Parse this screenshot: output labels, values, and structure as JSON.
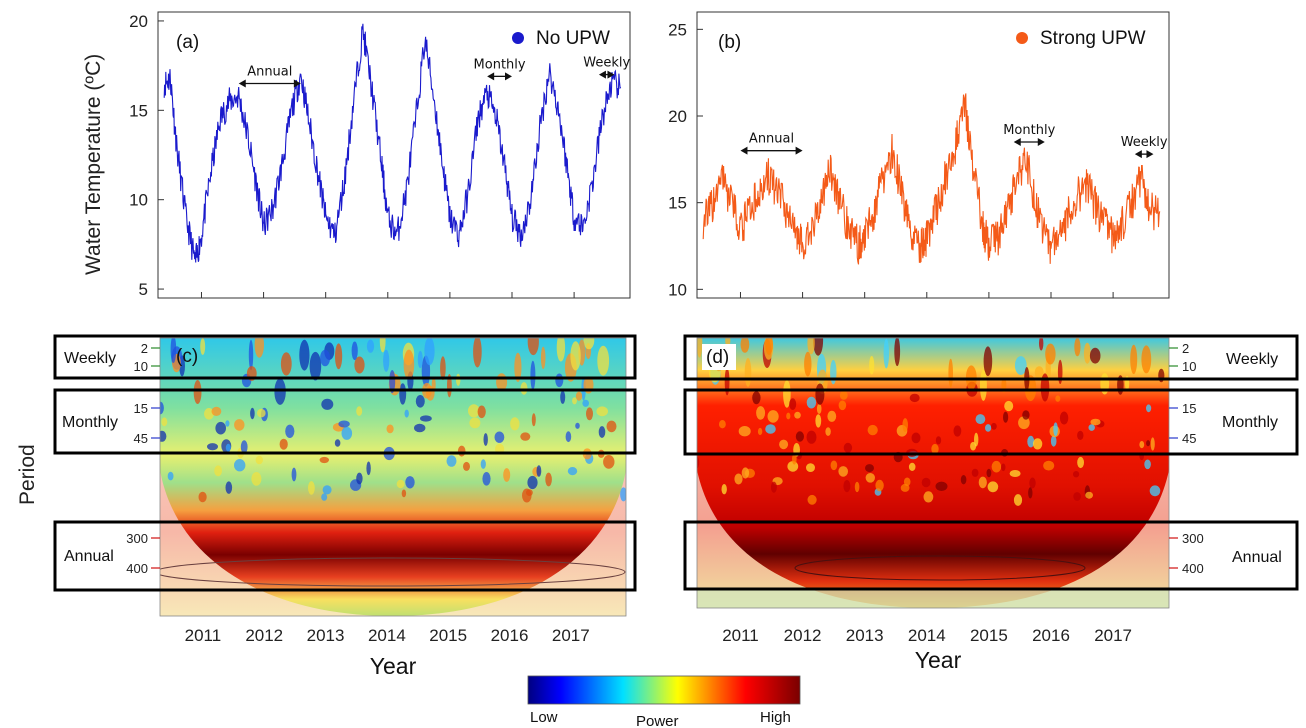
{
  "chart_data": [
    {
      "panel": "(a)",
      "type": "line",
      "ylabel": "Water Temperature (ºC)",
      "ylim": [
        5,
        20
      ],
      "yticks": [
        "5",
        "10",
        "15",
        "20"
      ],
      "legend": "No UPW",
      "legend_position": "top-right",
      "color": "#1a1acc",
      "xlim": [
        2010.3,
        2017.9
      ],
      "annotations": [
        {
          "label": "Annual",
          "x": [
            2011.6,
            2012.6
          ],
          "y": 16.5
        },
        {
          "label": "Monthly",
          "x": [
            2015.6,
            2016.0
          ],
          "y": 16.9
        },
        {
          "label": "Weekly",
          "x": [
            2017.4,
            2017.65
          ],
          "y": 17.0
        }
      ],
      "series": [
        {
          "name": "No UPW",
          "x": [
            2010.4,
            2010.5,
            2010.6,
            2010.75,
            2010.9,
            2011.0,
            2011.15,
            2011.3,
            2011.45,
            2011.6,
            2011.75,
            2011.9,
            2012.0,
            2012.15,
            2012.3,
            2012.45,
            2012.6,
            2012.75,
            2012.9,
            2013.0,
            2013.15,
            2013.3,
            2013.45,
            2013.6,
            2013.75,
            2013.9,
            2014.0,
            2014.15,
            2014.3,
            2014.45,
            2014.6,
            2014.75,
            2014.9,
            2015.0,
            2015.15,
            2015.3,
            2015.45,
            2015.6,
            2015.75,
            2015.9,
            2016.0,
            2016.15,
            2016.3,
            2016.45,
            2016.6,
            2016.75,
            2016.9,
            2017.0,
            2017.15,
            2017.3,
            2017.45,
            2017.6,
            2017.75
          ],
          "y": [
            16.5,
            16.8,
            13.0,
            9.0,
            6.5,
            8.0,
            11.5,
            14.5,
            15.5,
            15.8,
            13.5,
            10.5,
            8.5,
            9.5,
            12.0,
            15.0,
            17.0,
            14.0,
            11.0,
            9.0,
            8.0,
            11.0,
            15.5,
            19.5,
            16.0,
            12.0,
            9.0,
            8.0,
            10.5,
            14.5,
            19.0,
            15.5,
            11.5,
            9.0,
            8.0,
            10.5,
            14.5,
            16.0,
            14.5,
            11.5,
            9.0,
            8.0,
            10.0,
            14.0,
            17.2,
            15.0,
            11.5,
            9.0,
            8.5,
            11.0,
            14.5,
            16.5,
            16.3
          ]
        }
      ]
    },
    {
      "panel": "(b)",
      "type": "line",
      "ylim": [
        10,
        25
      ],
      "yticks": [
        "10",
        "15",
        "20",
        "25"
      ],
      "legend": "Strong UPW",
      "legend_position": "top-right",
      "color": "#f45a18",
      "xlim": [
        2010.3,
        2017.9
      ],
      "annotations": [
        {
          "label": "Annual",
          "x": [
            2011.0,
            2012.0
          ],
          "y": 18.0
        },
        {
          "label": "Monthly",
          "x": [
            2015.4,
            2015.9
          ],
          "y": 18.5
        },
        {
          "label": "Weekly",
          "x": [
            2017.35,
            2017.65
          ],
          "y": 17.8
        }
      ],
      "series": [
        {
          "name": "Strong UPW",
          "x": [
            2010.4,
            2010.55,
            2010.7,
            2010.85,
            2011.0,
            2011.15,
            2011.3,
            2011.45,
            2011.6,
            2011.75,
            2011.9,
            2012.0,
            2012.15,
            2012.3,
            2012.45,
            2012.6,
            2012.75,
            2012.9,
            2013.0,
            2013.15,
            2013.3,
            2013.45,
            2013.6,
            2013.75,
            2013.9,
            2014.0,
            2014.15,
            2014.3,
            2014.45,
            2014.6,
            2014.75,
            2014.9,
            2015.0,
            2015.15,
            2015.3,
            2015.45,
            2015.6,
            2015.75,
            2015.9,
            2016.0,
            2016.15,
            2016.3,
            2016.45,
            2016.6,
            2016.75,
            2016.9,
            2017.0,
            2017.15,
            2017.3,
            2017.45,
            2017.6,
            2017.75
          ],
          "y": [
            14.0,
            14.8,
            16.5,
            15.0,
            13.5,
            14.5,
            15.5,
            16.5,
            15.5,
            14.5,
            13.5,
            12.5,
            13.5,
            15.0,
            17.0,
            15.0,
            13.5,
            12.5,
            13.0,
            14.5,
            16.5,
            18.0,
            15.5,
            13.0,
            12.5,
            13.0,
            14.5,
            16.5,
            18.0,
            21.0,
            17.0,
            13.5,
            12.5,
            13.0,
            14.5,
            16.5,
            17.5,
            15.0,
            13.0,
            12.5,
            13.0,
            14.5,
            15.5,
            16.0,
            14.5,
            13.5,
            13.0,
            13.8,
            15.0,
            16.5,
            14.5,
            14.5
          ]
        }
      ]
    },
    {
      "panel": "(c)",
      "type": "heatmap",
      "xlabel": "Year",
      "ylabel": "Period",
      "xticks": [
        "2011",
        "2012",
        "2013",
        "2014",
        "2015",
        "2016",
        "2017"
      ],
      "period_ticks": [
        "2",
        "10",
        "15",
        "45",
        "300",
        "400"
      ],
      "bands": [
        "Weekly",
        "Monthly",
        "Annual"
      ],
      "power_level": "moderate"
    },
    {
      "panel": "(d)",
      "type": "heatmap",
      "xlabel": "Year",
      "xticks": [
        "2011",
        "2012",
        "2013",
        "2014",
        "2015",
        "2016",
        "2017"
      ],
      "period_ticks": [
        "2",
        "10",
        "15",
        "45",
        "300",
        "400"
      ],
      "bands": [
        "Weekly",
        "Monthly",
        "Annual"
      ],
      "power_level": "high"
    }
  ],
  "colorbar": {
    "low": "Low",
    "title": "Power",
    "high": "High",
    "colors": [
      "#000080",
      "#0000ff",
      "#00ffff",
      "#ffff00",
      "#ff0000",
      "#800000"
    ]
  },
  "ui": {
    "period_label": "Period",
    "year_label": "Year"
  }
}
